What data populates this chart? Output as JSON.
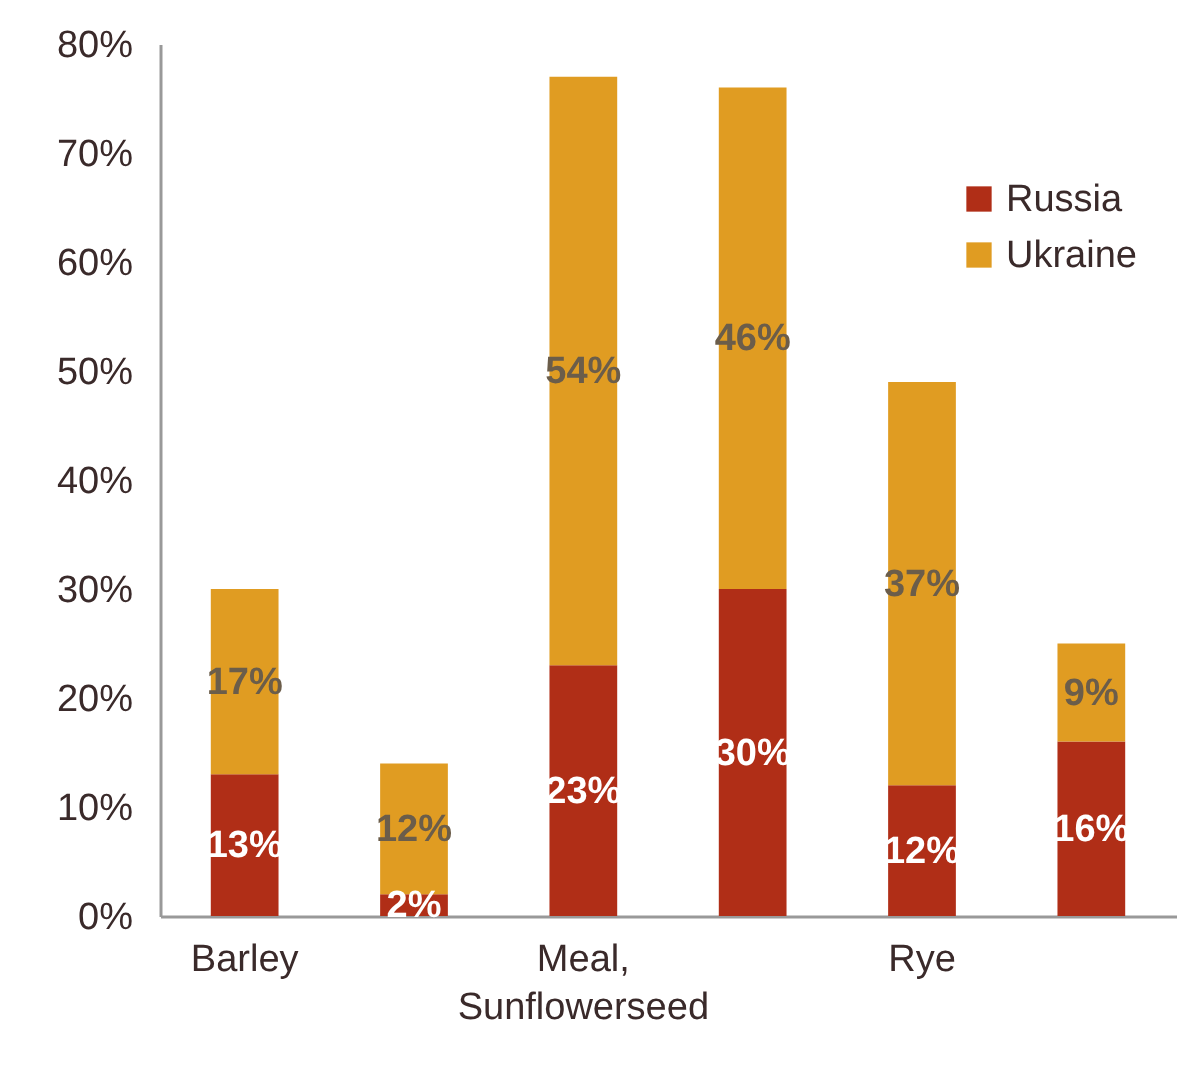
{
  "chart_data": {
    "type": "bar",
    "stacked": true,
    "categories": [
      "Barley",
      null,
      "Meal, Sunflowerseed",
      null,
      "Rye",
      null
    ],
    "series": [
      {
        "name": "Russia",
        "color": "#b02e17",
        "values": [
          13,
          2,
          23,
          30,
          12,
          16
        ],
        "value_labels": [
          "13%",
          "2%",
          "23%",
          "30%",
          "12%",
          "16%"
        ]
      },
      {
        "name": "Ukraine",
        "color": "#e09c22",
        "values": [
          17,
          12,
          54,
          46,
          37,
          9
        ],
        "value_labels": [
          "17%",
          "12%",
          "54%",
          "46%",
          "37%",
          "9%"
        ]
      }
    ],
    "ylim": [
      0,
      80
    ],
    "yticks": [
      {
        "value": 0,
        "label": "0%"
      },
      {
        "value": 10,
        "label": "10%"
      },
      {
        "value": 20,
        "label": "20%"
      },
      {
        "value": 30,
        "label": "30%"
      },
      {
        "value": 40,
        "label": "40%"
      },
      {
        "value": 50,
        "label": "50%"
      },
      {
        "value": 60,
        "label": "60%"
      },
      {
        "value": 70,
        "label": "70%"
      },
      {
        "value": 80,
        "label": "80%"
      }
    ],
    "grid": false,
    "legend": "top right"
  }
}
